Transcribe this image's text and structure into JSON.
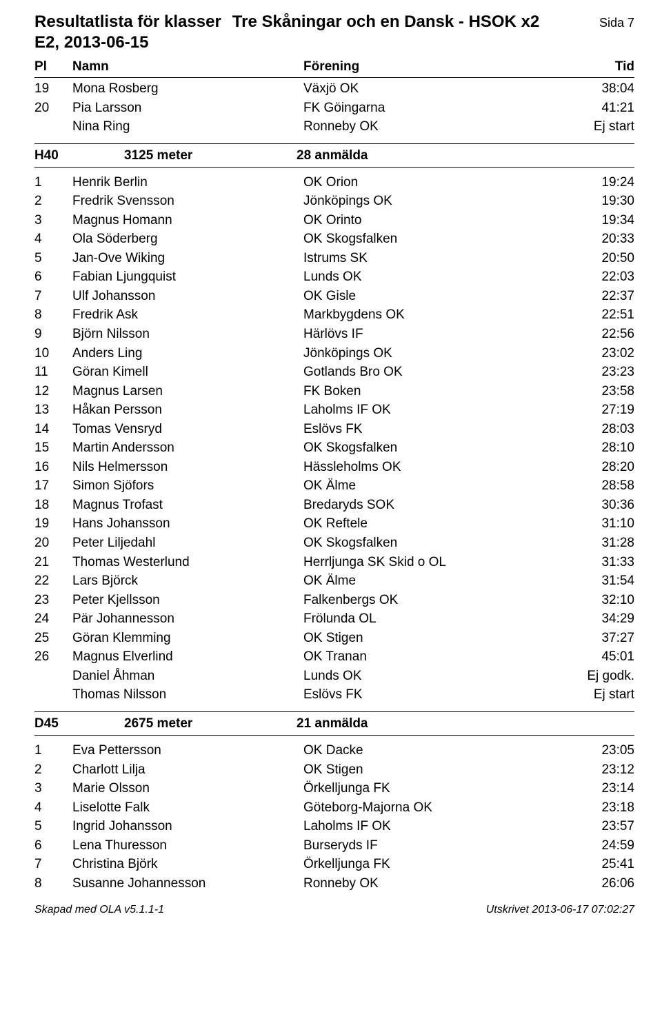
{
  "header": {
    "title": "Resultatlista för klasser",
    "event": "Tre Skåningar och en Dansk - HSOK x2",
    "page": "Sida 7",
    "edition": "E2, 2013-06-15"
  },
  "columns": {
    "plac": "Pl",
    "name": "Namn",
    "club": "Förening",
    "time": "Tid"
  },
  "top_rows": [
    {
      "plac": "19",
      "name": "Mona Rosberg",
      "club": "Växjö OK",
      "time": "38:04"
    },
    {
      "plac": "20",
      "name": "Pia Larsson",
      "club": "FK Göingarna",
      "time": "41:21"
    },
    {
      "plac": "",
      "name": "Nina Ring",
      "club": "Ronneby OK",
      "time": "Ej start"
    }
  ],
  "class1": {
    "code": "H40",
    "distance": "3125 meter",
    "registered": "28 anmälda",
    "rows": [
      {
        "plac": "1",
        "name": "Henrik Berlin",
        "club": "OK Orion",
        "time": "19:24"
      },
      {
        "plac": "2",
        "name": "Fredrik Svensson",
        "club": "Jönköpings OK",
        "time": "19:30"
      },
      {
        "plac": "3",
        "name": "Magnus Homann",
        "club": "OK Orinto",
        "time": "19:34"
      },
      {
        "plac": "4",
        "name": "Ola Söderberg",
        "club": "OK Skogsfalken",
        "time": "20:33"
      },
      {
        "plac": "5",
        "name": "Jan-Ove Wiking",
        "club": "Istrums SK",
        "time": "20:50"
      },
      {
        "plac": "6",
        "name": "Fabian Ljungquist",
        "club": "Lunds OK",
        "time": "22:03"
      },
      {
        "plac": "7",
        "name": "Ulf Johansson",
        "club": "OK Gisle",
        "time": "22:37"
      },
      {
        "plac": "8",
        "name": "Fredrik Ask",
        "club": "Markbygdens OK",
        "time": "22:51"
      },
      {
        "plac": "9",
        "name": "Björn Nilsson",
        "club": "Härlövs IF",
        "time": "22:56"
      },
      {
        "plac": "10",
        "name": "Anders Ling",
        "club": "Jönköpings OK",
        "time": "23:02"
      },
      {
        "plac": "11",
        "name": "Göran Kimell",
        "club": "Gotlands Bro OK",
        "time": "23:23"
      },
      {
        "plac": "12",
        "name": "Magnus Larsen",
        "club": "FK Boken",
        "time": "23:58"
      },
      {
        "plac": "13",
        "name": "Håkan Persson",
        "club": "Laholms IF OK",
        "time": "27:19"
      },
      {
        "plac": "14",
        "name": "Tomas Vensryd",
        "club": "Eslövs FK",
        "time": "28:03"
      },
      {
        "plac": "15",
        "name": "Martin Andersson",
        "club": "OK Skogsfalken",
        "time": "28:10"
      },
      {
        "plac": "16",
        "name": "Nils Helmersson",
        "club": "Hässleholms OK",
        "time": "28:20"
      },
      {
        "plac": "17",
        "name": "Simon Sjöfors",
        "club": "OK Älme",
        "time": "28:58"
      },
      {
        "plac": "18",
        "name": "Magnus Trofast",
        "club": "Bredaryds SOK",
        "time": "30:36"
      },
      {
        "plac": "19",
        "name": "Hans Johansson",
        "club": "OK Reftele",
        "time": "31:10"
      },
      {
        "plac": "20",
        "name": "Peter Liljedahl",
        "club": "OK Skogsfalken",
        "time": "31:28"
      },
      {
        "plac": "21",
        "name": "Thomas Westerlund",
        "club": "Herrljunga SK Skid o OL",
        "time": "31:33"
      },
      {
        "plac": "22",
        "name": "Lars Björck",
        "club": "OK Älme",
        "time": "31:54"
      },
      {
        "plac": "23",
        "name": "Peter Kjellsson",
        "club": "Falkenbergs OK",
        "time": "32:10"
      },
      {
        "plac": "24",
        "name": "Pär Johannesson",
        "club": "Frölunda OL",
        "time": "34:29"
      },
      {
        "plac": "25",
        "name": "Göran Klemming",
        "club": "OK Stigen",
        "time": "37:27"
      },
      {
        "plac": "26",
        "name": "Magnus Elverlind",
        "club": "OK Tranan",
        "time": "45:01"
      },
      {
        "plac": "",
        "name": "Daniel Åhman",
        "club": "Lunds OK",
        "time": "Ej godk."
      },
      {
        "plac": "",
        "name": "Thomas Nilsson",
        "club": "Eslövs FK",
        "time": "Ej start"
      }
    ]
  },
  "class2": {
    "code": "D45",
    "distance": "2675 meter",
    "registered": "21 anmälda",
    "rows": [
      {
        "plac": "1",
        "name": "Eva Pettersson",
        "club": "OK Dacke",
        "time": "23:05"
      },
      {
        "plac": "2",
        "name": "Charlott Lilja",
        "club": "OK Stigen",
        "time": "23:12"
      },
      {
        "plac": "3",
        "name": "Marie Olsson",
        "club": "Örkelljunga FK",
        "time": "23:14"
      },
      {
        "plac": "4",
        "name": "Liselotte Falk",
        "club": "Göteborg-Majorna OK",
        "time": "23:18"
      },
      {
        "plac": "5",
        "name": "Ingrid Johansson",
        "club": "Laholms IF OK",
        "time": "23:57"
      },
      {
        "plac": "6",
        "name": "Lena Thuresson",
        "club": "Burseryds IF",
        "time": "24:59"
      },
      {
        "plac": "7",
        "name": "Christina Björk",
        "club": "Örkelljunga FK",
        "time": "25:41"
      },
      {
        "plac": "8",
        "name": "Susanne Johannesson",
        "club": "Ronneby OK",
        "time": "26:06"
      }
    ]
  },
  "footer": {
    "left": "Skapad med OLA v5.1.1-1",
    "right": "Utskrivet 2013-06-17 07:02:27"
  }
}
